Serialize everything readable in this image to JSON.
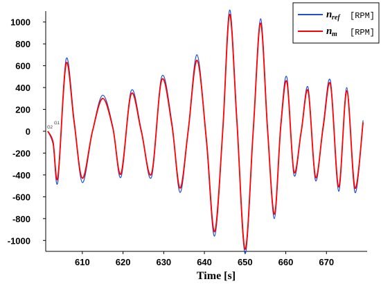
{
  "chart_data": {
    "type": "line",
    "xlabel": "Time [s]",
    "ylabel": "",
    "xlim": [
      601,
      680
    ],
    "ylim": [
      -1100,
      1100
    ],
    "xticks": [
      610,
      620,
      630,
      640,
      650,
      660,
      670
    ],
    "yticks": [
      1000,
      800,
      600,
      400,
      200,
      0,
      -200,
      -400,
      -600,
      -800,
      -1000
    ],
    "grid": false,
    "legend_position": "top-right",
    "markers": [
      "G1",
      "G2"
    ],
    "series": [
      {
        "name": "n_ref",
        "symbol": "n",
        "subscript": "ref",
        "unit": "[RPM]",
        "color": "#1f4fd8",
        "x": [
          601.5,
          602.8,
          604.0,
          606.0,
          608.0,
          610.0,
          612.5,
          615.0,
          617.5,
          619.5,
          622.0,
          624.5,
          627.0,
          629.5,
          632.0,
          634.0,
          636.0,
          638.2,
          640.5,
          642.5,
          644.5,
          646.2,
          648.0,
          650.0,
          652.0,
          653.8,
          655.5,
          657.2,
          658.8,
          660.3,
          662.0,
          663.8,
          665.5,
          667.3,
          669.2,
          671.0,
          673.0,
          675.0,
          677.0,
          679.0
        ],
        "y": [
          0,
          -120,
          -460,
          660,
          100,
          -470,
          0,
          330,
          40,
          -420,
          370,
          10,
          -420,
          500,
          80,
          -560,
          0,
          700,
          -100,
          -960,
          0,
          1110,
          100,
          -1120,
          0,
          1030,
          50,
          -800,
          80,
          490,
          -400,
          0,
          400,
          -450,
          60,
          460,
          -550,
          400,
          -560,
          100
        ]
      },
      {
        "name": "n_m",
        "symbol": "n",
        "subscript": "m",
        "unit": "[RPM]",
        "color": "#ff0000",
        "x": [
          601.5,
          602.8,
          604.0,
          606.0,
          608.0,
          610.0,
          612.5,
          615.0,
          617.5,
          619.5,
          622.0,
          624.5,
          627.0,
          629.5,
          632.0,
          634.0,
          636.0,
          638.2,
          640.5,
          642.5,
          644.5,
          646.2,
          648.0,
          650.0,
          652.0,
          653.8,
          655.5,
          657.2,
          658.8,
          660.3,
          662.0,
          663.8,
          665.5,
          667.3,
          669.2,
          671.0,
          673.0,
          675.0,
          677.0,
          679.0
        ],
        "y": [
          0,
          -100,
          -420,
          620,
          80,
          -430,
          0,
          300,
          30,
          -390,
          340,
          0,
          -390,
          470,
          60,
          -520,
          0,
          650,
          -80,
          -920,
          0,
          1070,
          80,
          -1080,
          0,
          990,
          30,
          -760,
          60,
          450,
          -370,
          0,
          370,
          -420,
          40,
          430,
          -510,
          370,
          -520,
          80
        ]
      }
    ]
  }
}
